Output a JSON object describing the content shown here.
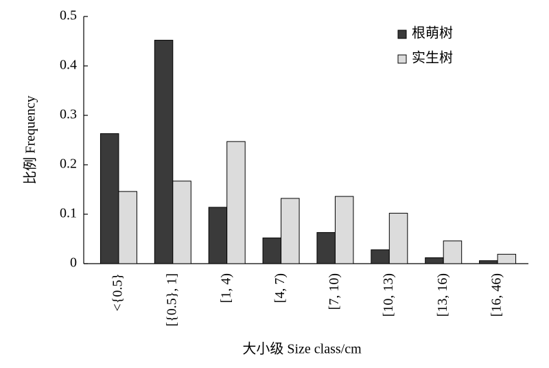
{
  "chart_data": {
    "type": "bar",
    "y_label": "比例 Frequency",
    "x_label": "大小级 Size class/cm",
    "categories": [
      "<{0.5}",
      "[{0.5}, 1]",
      "[1, 4)",
      "[4, 7)",
      "[7, 10)",
      "[10, 13)",
      "[13, 16)",
      "[16, 46)"
    ],
    "series": [
      {
        "name": "根萌树",
        "color": "#3a3a3a",
        "values": [
          0.263,
          0.452,
          0.114,
          0.052,
          0.063,
          0.028,
          0.012,
          0.006
        ]
      },
      {
        "name": "实生树",
        "color": "#dcdcdc",
        "values": [
          0.146,
          0.167,
          0.247,
          0.132,
          0.136,
          0.102,
          0.046,
          0.019
        ]
      }
    ],
    "ylim": [
      0,
      0.5
    ],
    "yticks": [
      0,
      0.1,
      0.2,
      0.3,
      0.4,
      0.5
    ],
    "grid": false,
    "legend": "upper right"
  }
}
